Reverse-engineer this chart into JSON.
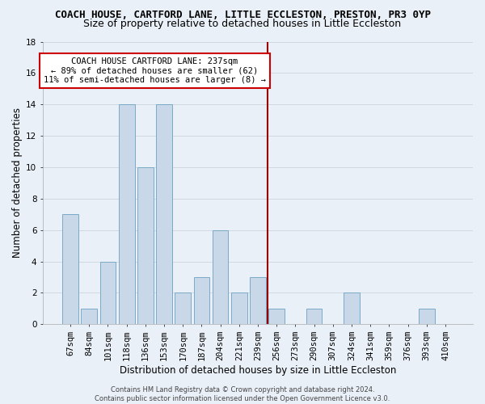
{
  "title": "COACH HOUSE, CARTFORD LANE, LITTLE ECCLESTON, PRESTON, PR3 0YP",
  "subtitle": "Size of property relative to detached houses in Little Eccleston",
  "xlabel": "Distribution of detached houses by size in Little Eccleston",
  "ylabel": "Number of detached properties",
  "footer_line1": "Contains HM Land Registry data © Crown copyright and database right 2024.",
  "footer_line2": "Contains public sector information licensed under the Open Government Licence v3.0.",
  "bar_labels": [
    "67sqm",
    "84sqm",
    "101sqm",
    "118sqm",
    "136sqm",
    "153sqm",
    "170sqm",
    "187sqm",
    "204sqm",
    "221sqm",
    "239sqm",
    "256sqm",
    "273sqm",
    "290sqm",
    "307sqm",
    "324sqm",
    "341sqm",
    "359sqm",
    "376sqm",
    "393sqm",
    "410sqm"
  ],
  "bar_values": [
    7,
    1,
    4,
    14,
    10,
    14,
    2,
    3,
    6,
    2,
    3,
    1,
    0,
    1,
    0,
    2,
    0,
    0,
    0,
    1,
    0
  ],
  "bar_color": "#c8d8e8",
  "bar_edge_color": "#7aaac8",
  "grid_color": "#d0d8e0",
  "vline_x_index": 10.5,
  "vline_color": "#990000",
  "annotation_text": "COACH HOUSE CARTFORD LANE: 237sqm\n← 89% of detached houses are smaller (62)\n11% of semi-detached houses are larger (8) →",
  "annotation_box_color": "#ffffff",
  "annotation_box_edge": "#cc0000",
  "ylim": [
    0,
    18
  ],
  "yticks": [
    0,
    2,
    4,
    6,
    8,
    10,
    12,
    14,
    16,
    18
  ],
  "bg_color": "#eaf0f8",
  "plot_bg_color": "#eaf0f8",
  "title_fontsize": 9,
  "subtitle_fontsize": 9,
  "xlabel_fontsize": 8.5,
  "ylabel_fontsize": 8.5,
  "tick_fontsize": 7.5,
  "footer_fontsize": 6,
  "annot_fontsize": 7.5
}
